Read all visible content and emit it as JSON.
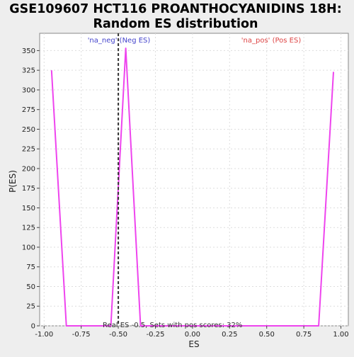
{
  "chart_data": {
    "type": "line",
    "title_line1": "GSE109607 HCT116 PROANTHOCYANIDINS 18H:",
    "title_line2": "Random ES distribution",
    "xlabel": "ES",
    "ylabel": "P(ES)",
    "xlim": [
      -1.03,
      1.05
    ],
    "ylim": [
      0,
      372
    ],
    "x_ticks": [
      -1.0,
      -0.75,
      -0.5,
      -0.25,
      0.0,
      0.25,
      0.5,
      0.75,
      1.0
    ],
    "x_tick_labels": [
      "-1.00",
      "-0.75",
      "-0.50",
      "-0.25",
      "0.00",
      "0.25",
      "0.50",
      "0.75",
      "1.00"
    ],
    "y_ticks": [
      0,
      25,
      50,
      75,
      100,
      125,
      150,
      175,
      200,
      225,
      250,
      275,
      300,
      325,
      350
    ],
    "y_tick_labels": [
      "0",
      "25",
      "50",
      "75",
      "100",
      "125",
      "150",
      "175",
      "200",
      "225",
      "250",
      "275",
      "300",
      "325",
      "350"
    ],
    "grid": true,
    "series": [
      {
        "color": "#ee44ee",
        "x": [
          -0.95,
          -0.85,
          -0.75,
          -0.65,
          -0.55,
          -0.45,
          -0.35,
          -0.25,
          -0.15,
          -0.05,
          0.05,
          0.15,
          0.25,
          0.35,
          0.45,
          0.55,
          0.65,
          0.75,
          0.85,
          0.95
        ],
        "y": [
          325,
          0,
          0,
          0,
          0,
          353,
          0,
          0,
          0,
          0,
          0,
          0,
          0,
          0,
          0,
          0,
          0,
          0,
          0,
          323
        ]
      }
    ],
    "real_es": -0.5,
    "neg_label": "'na_neg' (Neg ES)",
    "pos_label": "'na_pos' (Pos ES)",
    "neg_color": "#4444cc",
    "pos_color": "#dd4444",
    "footer": "Real ES -0.5, Sets with pos scores: 32%"
  }
}
